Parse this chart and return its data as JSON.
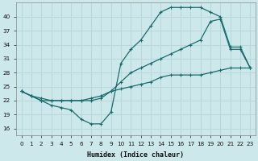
{
  "xlabel": "Humidex (Indice chaleur)",
  "bg_color": "#cde8eb",
  "grid_color": "#b8d8dc",
  "line_color": "#1a6b6b",
  "xlim": [
    -0.5,
    23.5
  ],
  "ylim": [
    14.5,
    43
  ],
  "yticks": [
    16,
    19,
    22,
    25,
    28,
    31,
    34,
    37,
    40
  ],
  "xticks": [
    0,
    1,
    2,
    3,
    4,
    5,
    6,
    7,
    8,
    9,
    10,
    11,
    12,
    13,
    14,
    15,
    16,
    17,
    18,
    19,
    20,
    21,
    22,
    23
  ],
  "line1_x": [
    0,
    1,
    2,
    3,
    4,
    5,
    6,
    7,
    8,
    9,
    10,
    11,
    12,
    13,
    14,
    15,
    16,
    17,
    18,
    19,
    20,
    21,
    22,
    23
  ],
  "line1_y": [
    24,
    23,
    22,
    21,
    20.5,
    20,
    18,
    17,
    17,
    19.5,
    30,
    33,
    35,
    38,
    41,
    42,
    42,
    42,
    42,
    41,
    40,
    33.5,
    33.5,
    29
  ],
  "line2_x": [
    0,
    1,
    2,
    3,
    4,
    5,
    6,
    7,
    8,
    9,
    10,
    11,
    12,
    13,
    14,
    15,
    16,
    17,
    18,
    19,
    20,
    21,
    22,
    23
  ],
  "line2_y": [
    24,
    23,
    22,
    22,
    22,
    22,
    22,
    22,
    22.5,
    24,
    26,
    28,
    29,
    30,
    31,
    32,
    33,
    34,
    35,
    39,
    39.5,
    33,
    33,
    29
  ],
  "line3_x": [
    0,
    1,
    2,
    3,
    4,
    5,
    6,
    7,
    8,
    9,
    10,
    11,
    12,
    13,
    14,
    15,
    16,
    17,
    18,
    19,
    20,
    21,
    22,
    23
  ],
  "line3_y": [
    24,
    23,
    22.5,
    22,
    22,
    22,
    22,
    22.5,
    23,
    24,
    24.5,
    25,
    25.5,
    26,
    27,
    27.5,
    27.5,
    27.5,
    27.5,
    28,
    28.5,
    29,
    29,
    29
  ]
}
